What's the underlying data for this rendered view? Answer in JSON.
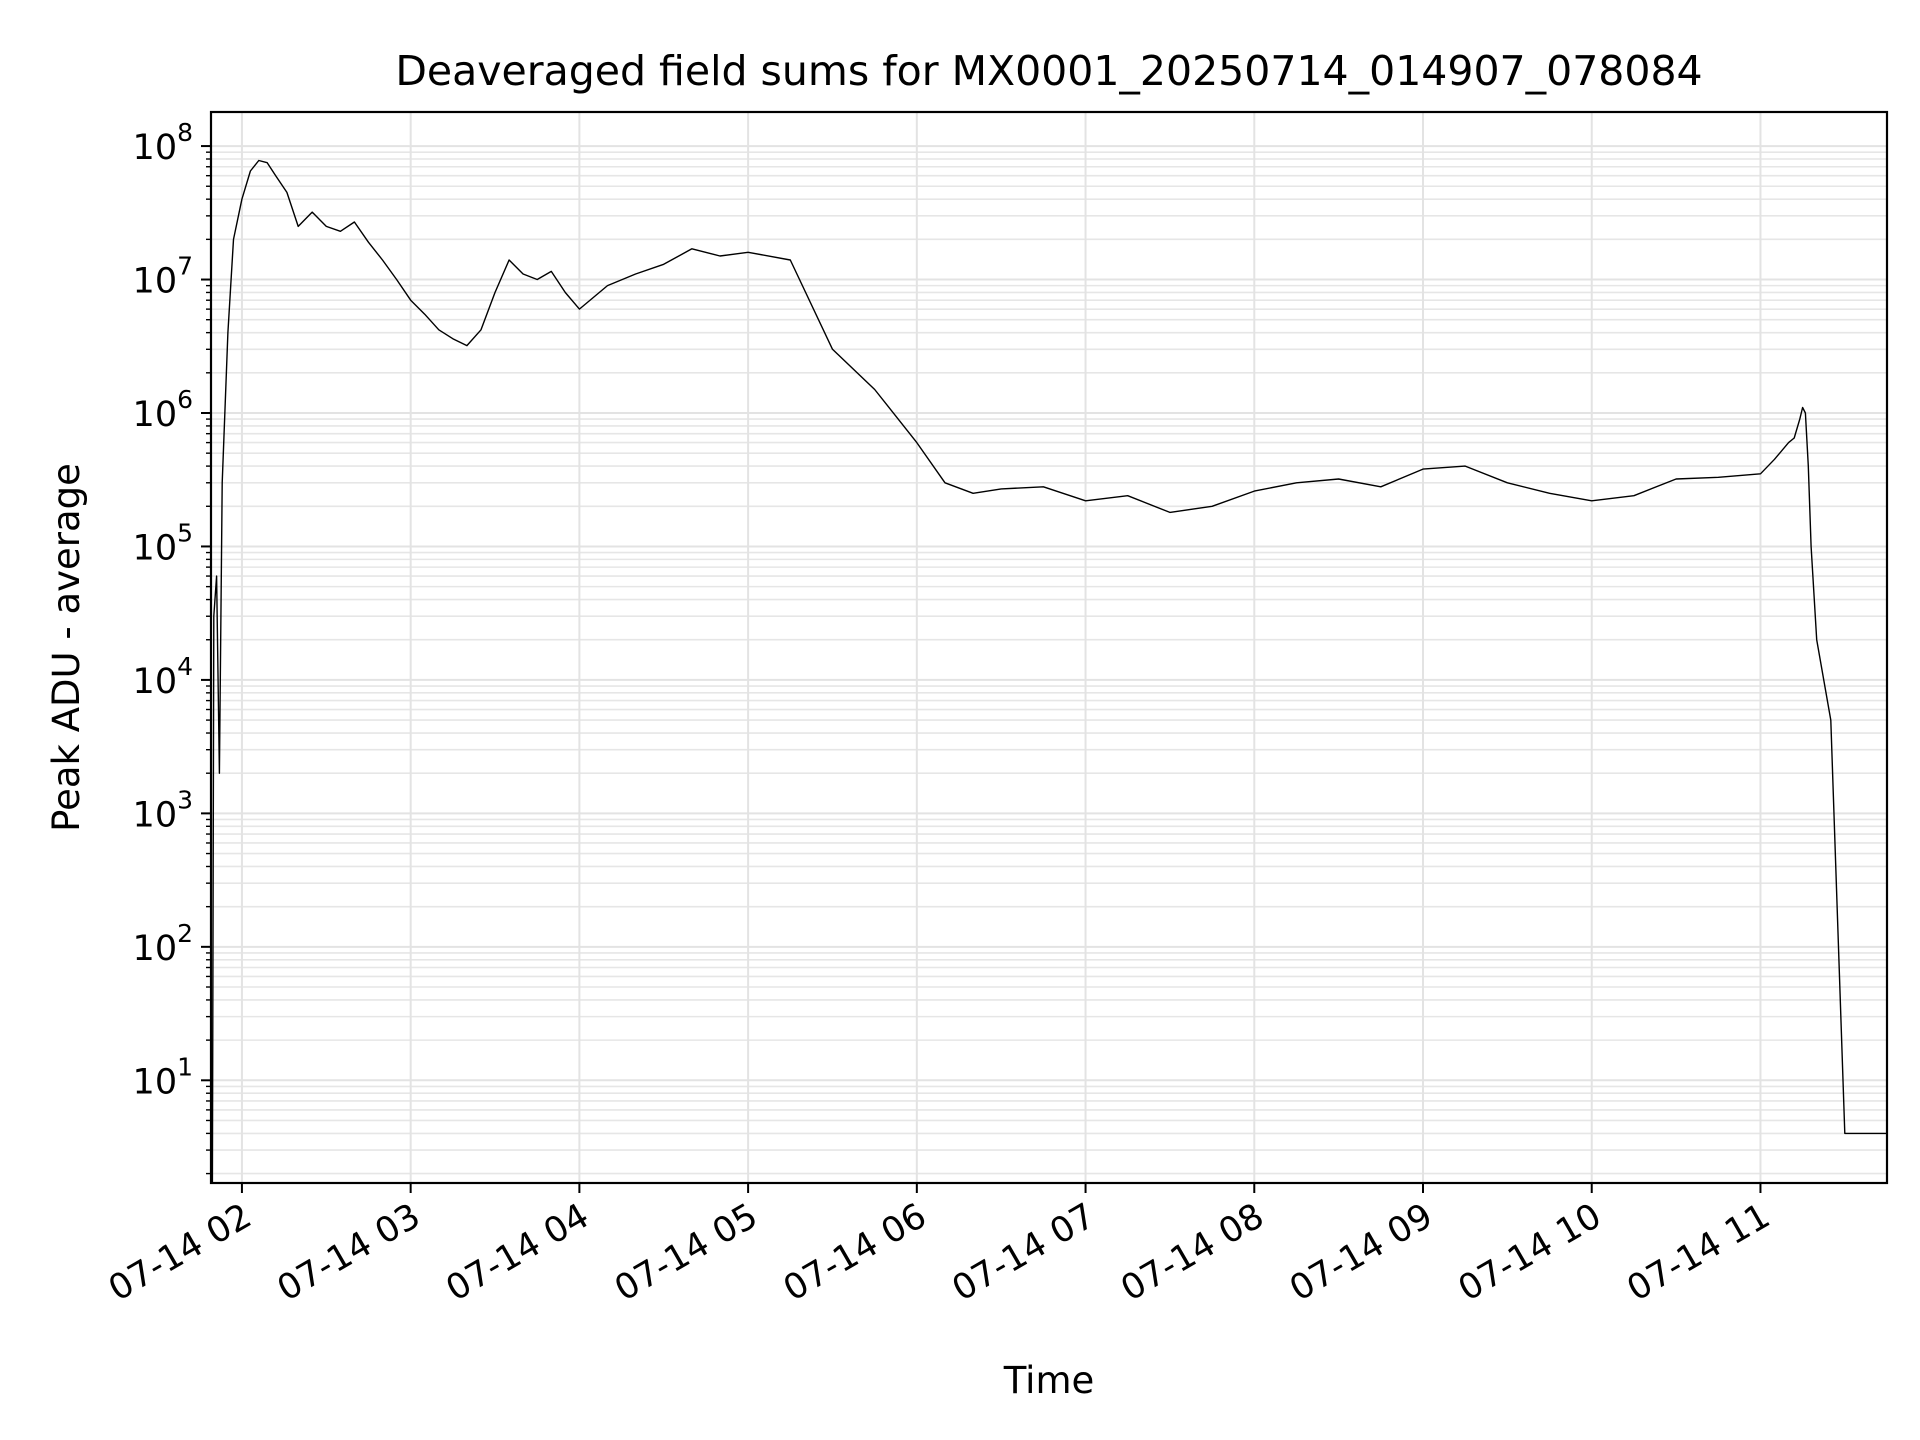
{
  "chart_data": {
    "type": "line",
    "title": "Deaveraged field sums for MX0001_20250714_014907_078084",
    "xlabel": "Time",
    "ylabel": "Peak ADU - average",
    "yscale": "log",
    "ylim": [
      1.7,
      180000000
    ],
    "xlim": [
      "2025-07-14T01:49:00",
      "2025-07-14T11:45:00"
    ],
    "grid": true,
    "legend": "none",
    "line_color": "#000000",
    "x_ticks": [
      {
        "value": "2025-07-14T02:00:00",
        "label": "07-14 02"
      },
      {
        "value": "2025-07-14T03:00:00",
        "label": "07-14 03"
      },
      {
        "value": "2025-07-14T04:00:00",
        "label": "07-14 04"
      },
      {
        "value": "2025-07-14T05:00:00",
        "label": "07-14 05"
      },
      {
        "value": "2025-07-14T06:00:00",
        "label": "07-14 06"
      },
      {
        "value": "2025-07-14T07:00:00",
        "label": "07-14 07"
      },
      {
        "value": "2025-07-14T08:00:00",
        "label": "07-14 08"
      },
      {
        "value": "2025-07-14T09:00:00",
        "label": "07-14 09"
      },
      {
        "value": "2025-07-14T10:00:00",
        "label": "07-14 10"
      },
      {
        "value": "2025-07-14T11:00:00",
        "label": "07-14 11"
      }
    ],
    "y_ticks": [
      {
        "value": 10,
        "base": "10",
        "exp": "1"
      },
      {
        "value": 100,
        "base": "10",
        "exp": "2"
      },
      {
        "value": 1000,
        "base": "10",
        "exp": "3"
      },
      {
        "value": 10000,
        "base": "10",
        "exp": "4"
      },
      {
        "value": 100000,
        "base": "10",
        "exp": "5"
      },
      {
        "value": 1000000,
        "base": "10",
        "exp": "6"
      },
      {
        "value": 10000000,
        "base": "10",
        "exp": "7"
      },
      {
        "value": 100000000,
        "base": "10",
        "exp": "8"
      }
    ],
    "series": [
      {
        "x": [
          "2025-07-14T01:49:30",
          "2025-07-14T01:50:00",
          "2025-07-14T01:51:00",
          "2025-07-14T01:52:00",
          "2025-07-14T01:53:00",
          "2025-07-14T01:55:00",
          "2025-07-14T01:57:00",
          "2025-07-14T02:00:00",
          "2025-07-14T02:03:00",
          "2025-07-14T02:06:00",
          "2025-07-14T02:09:00",
          "2025-07-14T02:12:00",
          "2025-07-14T02:16:00",
          "2025-07-14T02:20:00",
          "2025-07-14T02:25:00",
          "2025-07-14T02:30:00",
          "2025-07-14T02:35:00",
          "2025-07-14T02:40:00",
          "2025-07-14T02:45:00",
          "2025-07-14T02:50:00",
          "2025-07-14T02:55:00",
          "2025-07-14T03:00:00",
          "2025-07-14T03:05:00",
          "2025-07-14T03:10:00",
          "2025-07-14T03:15:00",
          "2025-07-14T03:20:00",
          "2025-07-14T03:25:00",
          "2025-07-14T03:30:00",
          "2025-07-14T03:35:00",
          "2025-07-14T03:40:00",
          "2025-07-14T03:45:00",
          "2025-07-14T03:50:00",
          "2025-07-14T03:55:00",
          "2025-07-14T04:00:00",
          "2025-07-14T04:10:00",
          "2025-07-14T04:20:00",
          "2025-07-14T04:30:00",
          "2025-07-14T04:40:00",
          "2025-07-14T04:50:00",
          "2025-07-14T05:00:00",
          "2025-07-14T05:15:00",
          "2025-07-14T05:30:00",
          "2025-07-14T05:45:00",
          "2025-07-14T06:00:00",
          "2025-07-14T06:10:00",
          "2025-07-14T06:20:00",
          "2025-07-14T06:30:00",
          "2025-07-14T06:45:00",
          "2025-07-14T07:00:00",
          "2025-07-14T07:15:00",
          "2025-07-14T07:30:00",
          "2025-07-14T07:45:00",
          "2025-07-14T08:00:00",
          "2025-07-14T08:15:00",
          "2025-07-14T08:30:00",
          "2025-07-14T08:45:00",
          "2025-07-14T09:00:00",
          "2025-07-14T09:15:00",
          "2025-07-14T09:30:00",
          "2025-07-14T09:45:00",
          "2025-07-14T10:00:00",
          "2025-07-14T10:15:00",
          "2025-07-14T10:30:00",
          "2025-07-14T10:45:00",
          "2025-07-14T11:00:00",
          "2025-07-14T11:05:00",
          "2025-07-14T11:10:00",
          "2025-07-14T11:12:00",
          "2025-07-14T11:14:00",
          "2025-07-14T11:15:00",
          "2025-07-14T11:16:00",
          "2025-07-14T11:17:00",
          "2025-07-14T11:18:00",
          "2025-07-14T11:20:00",
          "2025-07-14T11:25:00",
          "2025-07-14T11:30:00",
          "2025-07-14T11:45:00"
        ],
        "values": [
          1.7,
          30000,
          60000,
          2000,
          300000,
          4000000,
          20000000,
          40000000,
          65000000,
          78000000,
          75000000,
          60000000,
          45000000,
          25000000,
          32000000,
          25000000,
          23000000,
          27000000,
          19000000,
          14000000,
          10000000,
          7000000,
          5500000,
          4200000,
          3600000,
          3200000,
          4200000,
          8000000,
          14000000,
          11000000,
          10000000,
          11500000,
          8000000,
          6000000,
          9000000,
          11000000,
          13000000,
          17000000,
          15000000,
          16000000,
          14000000,
          3000000,
          1500000,
          600000,
          300000,
          250000,
          270000,
          280000,
          220000,
          240000,
          180000,
          200000,
          260000,
          300000,
          320000,
          280000,
          380000,
          400000,
          300000,
          250000,
          220000,
          240000,
          320000,
          330000,
          350000,
          450000,
          600000,
          650000,
          900000,
          1100000,
          1000000,
          400000,
          100000,
          20000,
          5000,
          4,
          4
        ]
      }
    ]
  }
}
